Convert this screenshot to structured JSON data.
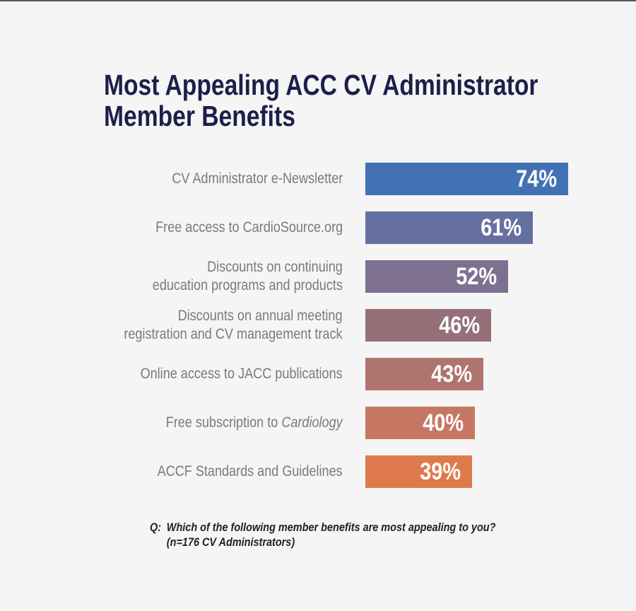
{
  "chart_data": {
    "type": "bar",
    "orientation": "horizontal",
    "title": "Most Appealing ACC CV Administrator Member Benefits",
    "title_lines": [
      "Most Appealing ACC CV Administrator",
      "Member Benefits"
    ],
    "categories": [
      {
        "lines": [
          "CV Administrator e-Newsletter"
        ]
      },
      {
        "lines": [
          "Free access to CardioSource.org"
        ]
      },
      {
        "lines": [
          "Discounts on continuing",
          "education programs and products"
        ]
      },
      {
        "lines": [
          "Discounts on annual meeting",
          "registration and CV management track"
        ]
      },
      {
        "lines": [
          "Online access to JACC publications"
        ]
      },
      {
        "lines": [
          "Free subscription to "
        ],
        "italic": "Cardiology"
      },
      {
        "lines": [
          "ACCF Standards and Guidelines"
        ]
      }
    ],
    "values": [
      74,
      61,
      52,
      46,
      43,
      40,
      39
    ],
    "value_labels": [
      "74%",
      "61%",
      "52%",
      "46%",
      "43%",
      "40%",
      "39%"
    ],
    "colors": [
      "#4272b4",
      "#6670a0",
      "#7e7090",
      "#957079",
      "#af7470",
      "#c67763",
      "#de7a4c"
    ],
    "unit": "%",
    "xlim": [
      0,
      100
    ]
  },
  "footnote": {
    "q": "Q:",
    "question": "Which of the following member benefits are most appealing to you?",
    "n": "(n=176 CV Administrators)"
  }
}
